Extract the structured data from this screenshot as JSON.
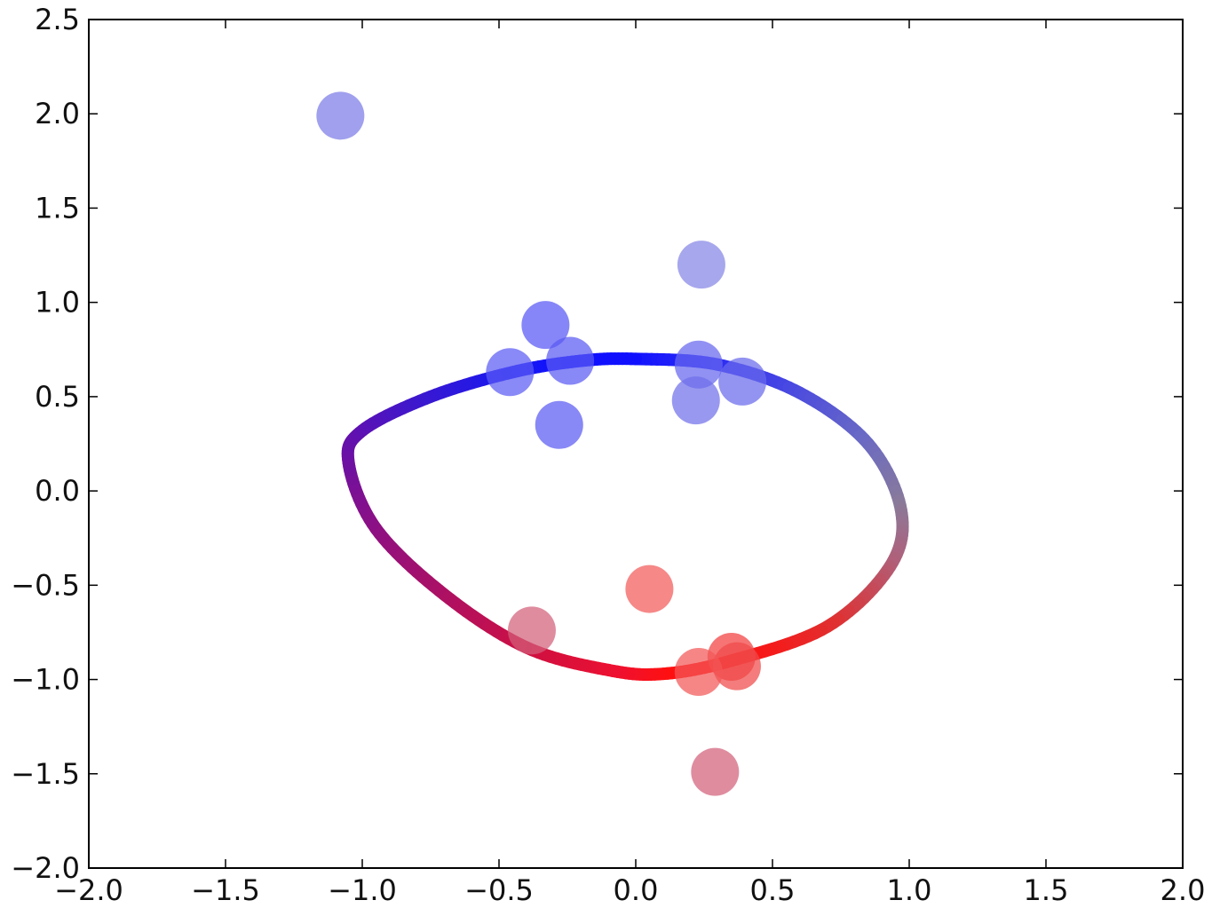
{
  "chart_data": {
    "type": "scatter",
    "title": "",
    "xlabel": "",
    "ylabel": "",
    "xlim": [
      -2.0,
      2.0
    ],
    "ylim": [
      -2.0,
      2.0
    ],
    "ylim_display": [
      -2.0,
      2.5
    ],
    "x_ticks": [
      "-2.0",
      "-1.5",
      "-1.0",
      "-0.5",
      "0.0",
      "0.5",
      "1.0",
      "1.5",
      "2.0"
    ],
    "y_ticks": [
      "-2.0",
      "-1.5",
      "-1.0",
      "-0.5",
      "0.0",
      "0.5",
      "1.0",
      "1.5",
      "2.0",
      "2.5"
    ],
    "x_tick_values": [
      -2.0,
      -1.5,
      -1.0,
      -0.5,
      0.0,
      0.5,
      1.0,
      1.5,
      2.0
    ],
    "y_tick_values": [
      -2.0,
      -1.5,
      -1.0,
      -0.5,
      0.0,
      0.5,
      1.0,
      1.5,
      2.0,
      2.5
    ],
    "grid": false,
    "legend": "none",
    "points": [
      {
        "x": -1.08,
        "y": 1.99,
        "color": "#7b7be8"
      },
      {
        "x": 0.24,
        "y": 1.2,
        "color": "#8585e6"
      },
      {
        "x": -0.33,
        "y": 0.88,
        "color": "#5757f5"
      },
      {
        "x": -0.24,
        "y": 0.69,
        "color": "#5a5af3"
      },
      {
        "x": -0.46,
        "y": 0.63,
        "color": "#5c5cf4"
      },
      {
        "x": 0.23,
        "y": 0.67,
        "color": "#6767ee"
      },
      {
        "x": 0.39,
        "y": 0.58,
        "color": "#6a6aec"
      },
      {
        "x": 0.22,
        "y": 0.48,
        "color": "#7070ea"
      },
      {
        "x": -0.28,
        "y": 0.35,
        "color": "#5a5af3"
      },
      {
        "x": 0.05,
        "y": -0.52,
        "color": "#f35a5a"
      },
      {
        "x": -0.38,
        "y": -0.74,
        "color": "#d3607a"
      },
      {
        "x": 0.35,
        "y": -0.88,
        "color": "#f33f3f"
      },
      {
        "x": 0.37,
        "y": -0.93,
        "color": "#f04a4a"
      },
      {
        "x": 0.23,
        "y": -0.96,
        "color": "#f25858"
      },
      {
        "x": 0.29,
        "y": -1.49,
        "color": "#d3607a"
      }
    ],
    "curve": {
      "series": "closed-loop",
      "x": [
        0.0,
        0.3,
        0.6,
        0.85,
        0.97,
        0.93,
        0.7,
        0.35,
        0.1,
        -0.1,
        -0.4,
        -0.7,
        -0.95,
        -1.05,
        -1.0,
        -0.75,
        -0.45,
        -0.2,
        0.0
      ],
      "y": [
        0.7,
        0.67,
        0.52,
        0.25,
        -0.1,
        -0.4,
        -0.72,
        -0.9,
        -0.97,
        -0.95,
        -0.83,
        -0.55,
        -0.2,
        0.15,
        0.32,
        0.5,
        0.63,
        0.69,
        0.7
      ],
      "colors": [
        "#1010ff",
        "#2a2af5",
        "#4a4ae0",
        "#6a6ac4",
        "#8a7a9a",
        "#b0607a",
        "#e03030",
        "#ff1010",
        "#ff1010",
        "#ee1030",
        "#d01040",
        "#b01060",
        "#901080",
        "#7010a0",
        "#6010b0",
        "#3a18d0",
        "#1818f0",
        "#1010ff",
        "#1010ff"
      ]
    }
  }
}
